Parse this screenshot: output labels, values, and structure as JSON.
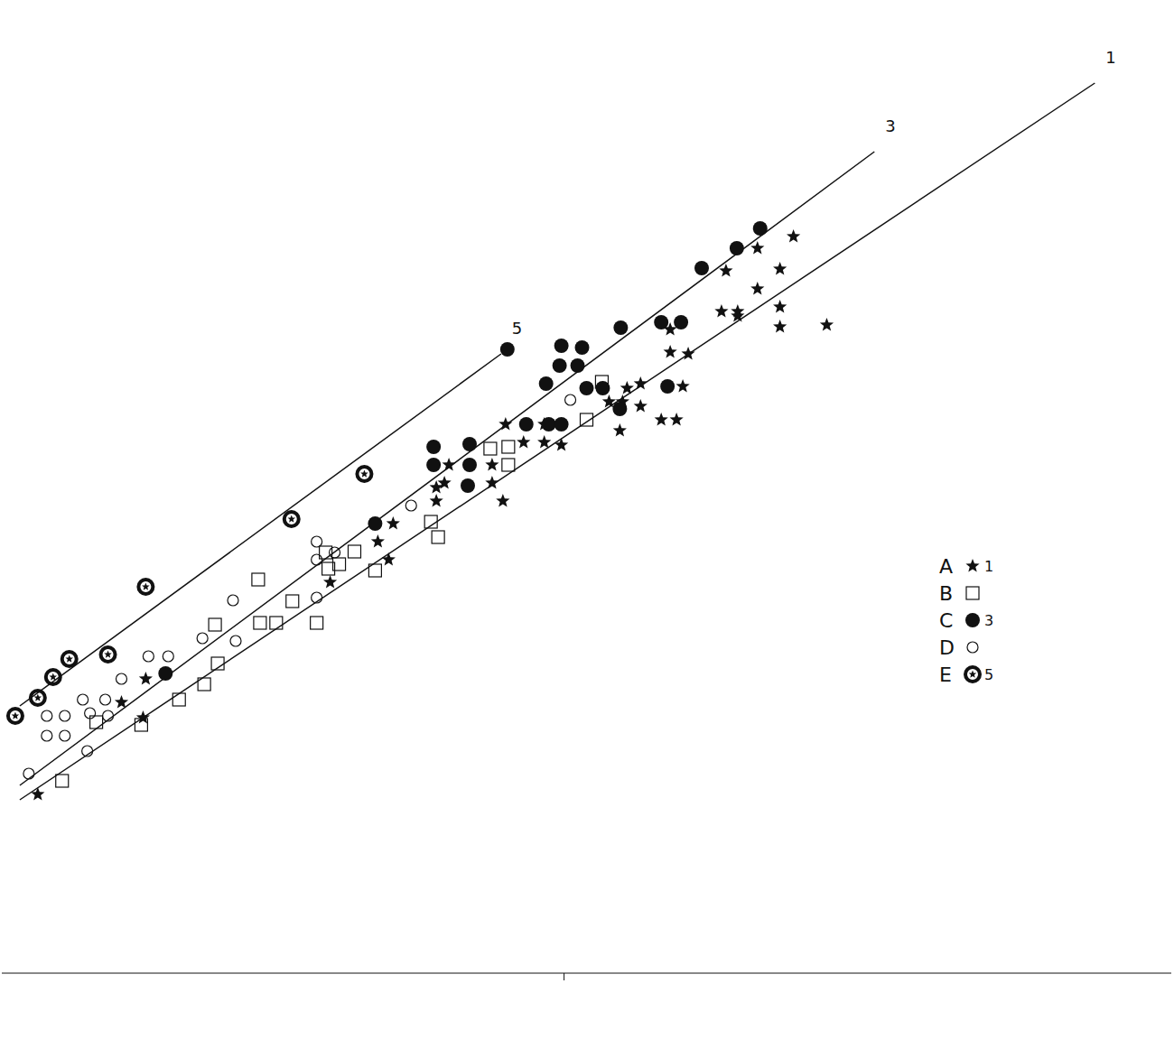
{
  "chart_data": {
    "type": "scatter",
    "xlim": [
      0,
      1300
    ],
    "ylim": [
      0,
      1078
    ],
    "xticks": [
      625
    ],
    "yticks": [
      223,
      448,
      656
    ],
    "tick_labels": false,
    "grid": false,
    "legend": "right",
    "series": [
      {
        "name": "A",
        "fit_line": "1",
        "marker": "star",
        "color": "#111111",
        "x": [
          40,
          157,
          133,
          160,
          365,
          430,
          418,
          435,
          483,
          492,
          497,
          483,
          545,
          557,
          545,
          560,
          580,
          603,
          622,
          603,
          675,
          690,
          710,
          695,
          710,
          743,
          763,
          743,
          757,
          733,
          750,
          687,
          800,
          818,
          805,
          840,
          880,
          865,
          840,
          865,
          865,
          917,
          818
        ],
        "values": [
          198,
          283,
          300,
          326,
          433,
          458,
          478,
          498,
          523,
          543,
          563,
          538,
          543,
          523,
          563,
          608,
          588,
          588,
          585,
          608,
          633,
          633,
          628,
          648,
          653,
          688,
          686,
          713,
          650,
          613,
          613,
          601,
          733,
          733,
          778,
          803,
          816,
          780,
          758,
          738,
          716,
          718,
          728
        ]
      },
      {
        "name": "B",
        "marker": "square",
        "color": "#111111",
        "x": [
          67,
          155,
          197,
          225,
          240,
          237,
          287,
          305,
          285,
          323,
          350,
          363,
          375,
          392,
          415,
          360,
          477,
          485,
          543,
          563,
          563,
          650,
          667,
          105
        ],
        "values": [
          213,
          275,
          303,
          320,
          343,
          386,
          388,
          388,
          436,
          412,
          388,
          448,
          453,
          467,
          446,
          466,
          500,
          483,
          581,
          583,
          563,
          613,
          655,
          278
        ]
      },
      {
        "name": "C",
        "fit_line": "3",
        "marker": "filled_circle",
        "color": "#111111",
        "x": [
          182,
          415,
          480,
          480,
          520,
          520,
          518,
          562,
          583,
          608,
          622,
          605,
          620,
          622,
          640,
          645,
          650,
          668,
          687,
          688,
          733,
          755,
          740,
          778,
          817,
          843
        ],
        "values": [
          332,
          498,
          583,
          563,
          586,
          563,
          540,
          691,
          608,
          608,
          608,
          653,
          673,
          695,
          673,
          693,
          648,
          648,
          625,
          715,
          721,
          721,
          650,
          781,
          803,
          825
        ]
      },
      {
        "name": "D",
        "marker": "open_circle",
        "color": "#111111",
        "x": [
          30,
          50,
          70,
          50,
          70,
          90,
          98,
          115,
          118,
          133,
          163,
          185,
          223,
          257,
          260,
          350,
          350,
          370,
          350,
          455,
          632,
          95
        ],
        "values": [
          221,
          263,
          263,
          285,
          285,
          303,
          288,
          303,
          285,
          326,
          351,
          351,
          371,
          413,
          368,
          478,
          458,
          466,
          416,
          518,
          635,
          246
        ]
      },
      {
        "name": "E",
        "fit_line": "5",
        "marker": "circled_star",
        "color": "#111111",
        "x": [
          15,
          40,
          57,
          75,
          118,
          160,
          322,
          403
        ],
        "values": [
          285,
          305,
          328,
          348,
          353,
          428,
          503,
          553
        ]
      }
    ],
    "lines": [
      {
        "name": "1",
        "color": "#111111",
        "x": [
          20,
          1215
        ],
        "values": [
          192,
          986
        ]
      },
      {
        "name": "3",
        "color": "#111111",
        "x": [
          20,
          970
        ],
        "values": [
          208,
          910
        ]
      },
      {
        "name": "5",
        "color": "#111111",
        "x": [
          20,
          555
        ],
        "values": [
          296,
          686
        ]
      }
    ]
  }
}
